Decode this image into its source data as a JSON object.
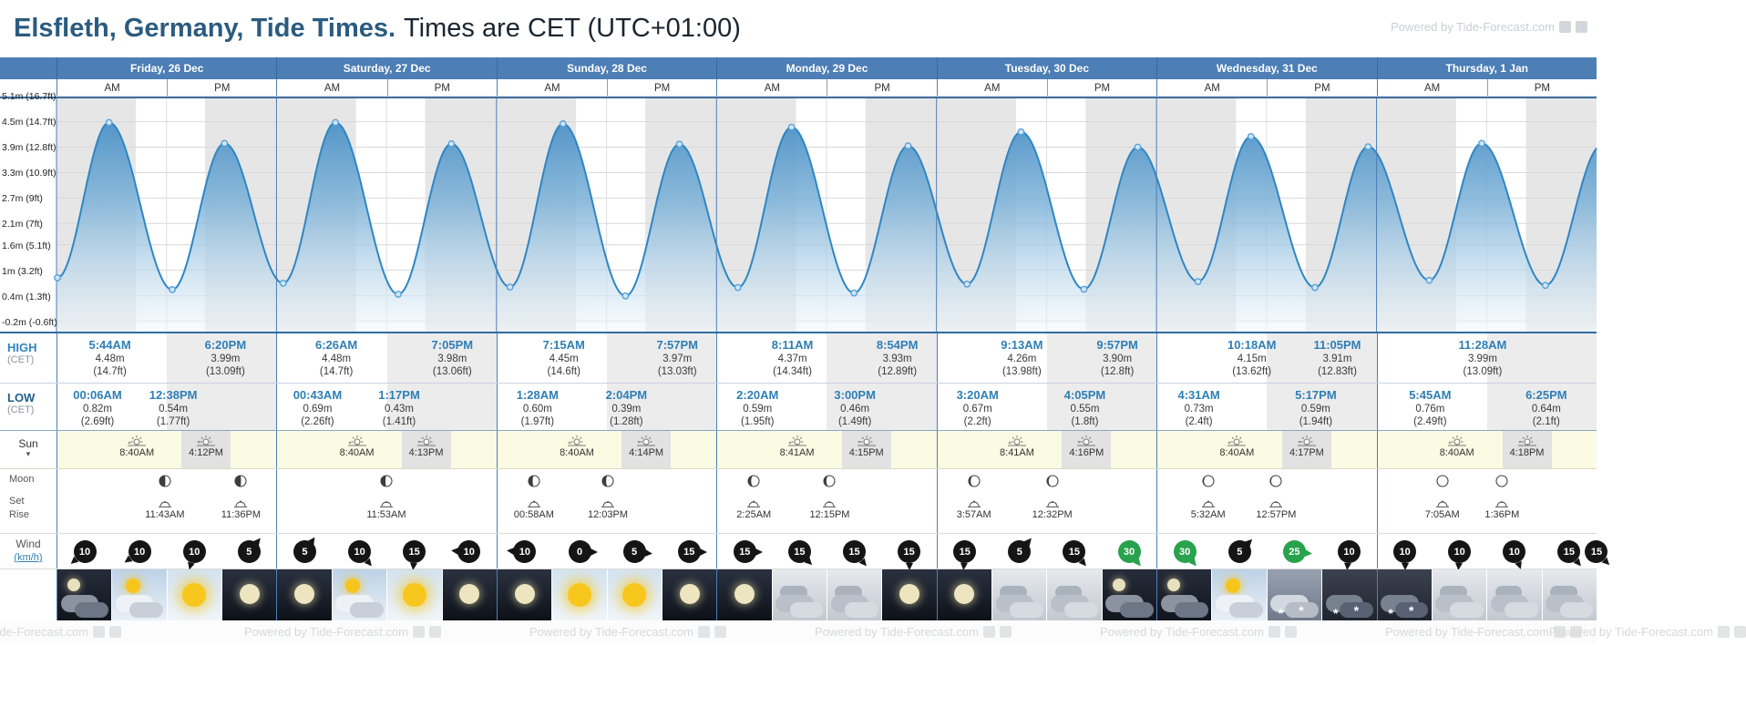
{
  "header": {
    "title_bold": "Elsfleth, Germany, Tide Times.",
    "title_rest": "Times are CET (UTC+01:00)",
    "watermark": "Powered by Tide-Forecast.com"
  },
  "ampm": {
    "am": "AM",
    "pm": "PM"
  },
  "row_labels": {
    "high": "HIGH",
    "high_sub": "(CET)",
    "low": "LOW",
    "low_sub": "(CET)",
    "sun": "Sun",
    "sun_caret": "▾",
    "moon": "Moon",
    "moon_set": "Set",
    "moon_rise": "Rise",
    "wind": "Wind",
    "wind_unit": "(km/h)"
  },
  "colors": {
    "accent_blue": "#4d7eb5",
    "tide_time_blue": "#2e7fb5",
    "curve_blue": "#2f86c3",
    "night_band_grey": "#e6e6e6",
    "wind_strong_green": "#28a24c",
    "sun_row_yellow": "#fbfbe3"
  },
  "days": [
    {
      "label": "Friday, 26 Dec",
      "high": [
        {
          "time": "5:44AM",
          "h": 5.73,
          "m": "4.48m",
          "ft": "(14.7ft)"
        },
        {
          "time": "6:20PM",
          "h": 18.33,
          "m": "3.99m",
          "ft": "(13.09ft)"
        }
      ],
      "low": [
        {
          "time": "00:06AM",
          "h": 0.1,
          "m": "0.82m",
          "ft": "(2.69ft)"
        },
        {
          "time": "12:38PM",
          "h": 12.63,
          "m": "0.54m",
          "ft": "(1.77ft)"
        }
      ],
      "sun": {
        "rise": "8:40AM",
        "rise_h": 8.67,
        "set": "4:12PM",
        "set_h": 16.2
      },
      "moon": [
        {
          "time": "11:43AM",
          "h": 11.72,
          "type": "rise",
          "phase": 0.48
        },
        {
          "time": "11:36PM",
          "h": 23.6,
          "type": "set",
          "phase": 0.48
        }
      ],
      "wind": [
        {
          "v": 10,
          "dir": 230
        },
        {
          "v": 10,
          "dir": 235
        },
        {
          "v": 10,
          "dir": 195
        },
        {
          "v": 5,
          "dir": 40
        }
      ],
      "weather": [
        "night-clouds",
        "day-sun-cloud",
        "sunny",
        "clear-night"
      ]
    },
    {
      "label": "Saturday, 27 Dec",
      "high": [
        {
          "time": "6:26AM",
          "h": 6.43,
          "m": "4.48m",
          "ft": "(14.7ft)"
        },
        {
          "time": "7:05PM",
          "h": 19.08,
          "m": "3.98m",
          "ft": "(13.06ft)"
        }
      ],
      "low": [
        {
          "time": "00:43AM",
          "h": 0.72,
          "m": "0.69m",
          "ft": "(2.26ft)"
        },
        {
          "time": "1:17PM",
          "h": 13.28,
          "m": "0.43m",
          "ft": "(1.41ft)"
        }
      ],
      "sun": {
        "rise": "8:40AM",
        "rise_h": 8.67,
        "set": "4:13PM",
        "set_h": 16.22
      },
      "moon": [
        {
          "time": "11:53AM",
          "h": 11.88,
          "type": "rise",
          "phase": 0.55
        }
      ],
      "wind": [
        {
          "v": 5,
          "dir": 35
        },
        {
          "v": 10,
          "dir": 140
        },
        {
          "v": 15,
          "dir": 185
        },
        {
          "v": 10,
          "dir": 275
        }
      ],
      "weather": [
        "clear-night",
        "day-sun-cloud",
        "sunny",
        "clear-night"
      ]
    },
    {
      "label": "Sunday, 28 Dec",
      "high": [
        {
          "time": "7:15AM",
          "h": 7.25,
          "m": "4.45m",
          "ft": "(14.6ft)"
        },
        {
          "time": "7:57PM",
          "h": 19.95,
          "m": "3.97m",
          "ft": "(13.03ft)"
        }
      ],
      "low": [
        {
          "time": "1:28AM",
          "h": 1.47,
          "m": "0.60m",
          "ft": "(1.97ft)"
        },
        {
          "time": "2:04PM",
          "h": 14.07,
          "m": "0.39m",
          "ft": "(1.28ft)"
        }
      ],
      "sun": {
        "rise": "8:40AM",
        "rise_h": 8.67,
        "set": "4:14PM",
        "set_h": 16.23
      },
      "moon": [
        {
          "time": "00:58AM",
          "h": 0.97,
          "type": "set",
          "phase": 0.58
        },
        {
          "time": "12:03PM",
          "h": 12.05,
          "type": "rise",
          "phase": 0.6
        }
      ],
      "wind": [
        {
          "v": 10,
          "dir": 275
        },
        {
          "v": 0,
          "dir": 90
        },
        {
          "v": 5,
          "dir": 95
        },
        {
          "v": 15,
          "dir": 90
        }
      ],
      "weather": [
        "clear-night",
        "sunny",
        "sunny",
        "clear-night"
      ]
    },
    {
      "label": "Monday, 29 Dec",
      "high": [
        {
          "time": "8:11AM",
          "h": 8.18,
          "m": "4.37m",
          "ft": "(14.34ft)"
        },
        {
          "time": "8:54PM",
          "h": 20.9,
          "m": "3.93m",
          "ft": "(12.89ft)"
        }
      ],
      "low": [
        {
          "time": "2:20AM",
          "h": 2.33,
          "m": "0.59m",
          "ft": "(1.95ft)"
        },
        {
          "time": "3:00PM",
          "h": 15.0,
          "m": "0.46m",
          "ft": "(1.49ft)"
        }
      ],
      "sun": {
        "rise": "8:41AM",
        "rise_h": 8.68,
        "set": "4:15PM",
        "set_h": 16.25
      },
      "moon": [
        {
          "time": "2:25AM",
          "h": 2.42,
          "type": "set",
          "phase": 0.65
        },
        {
          "time": "12:15PM",
          "h": 12.25,
          "type": "rise",
          "phase": 0.68
        }
      ],
      "wind": [
        {
          "v": 15,
          "dir": 90
        },
        {
          "v": 15,
          "dir": 135
        },
        {
          "v": 15,
          "dir": 140
        },
        {
          "v": 15,
          "dir": 180
        }
      ],
      "weather": [
        "clear-night",
        "cloudy",
        "cloudy",
        "clear-night"
      ]
    },
    {
      "label": "Tuesday, 30 Dec",
      "high": [
        {
          "time": "9:13AM",
          "h": 9.22,
          "m": "4.26m",
          "ft": "(13.98ft)"
        },
        {
          "time": "9:57PM",
          "h": 21.95,
          "m": "3.90m",
          "ft": "(12.8ft)"
        }
      ],
      "low": [
        {
          "time": "3:20AM",
          "h": 3.33,
          "m": "0.67m",
          "ft": "(2.2ft)"
        },
        {
          "time": "4:05PM",
          "h": 16.08,
          "m": "0.55m",
          "ft": "(1.8ft)"
        }
      ],
      "sun": {
        "rise": "8:41AM",
        "rise_h": 8.68,
        "set": "4:16PM",
        "set_h": 16.27
      },
      "moon": [
        {
          "time": "3:57AM",
          "h": 3.95,
          "type": "set",
          "phase": 0.72
        },
        {
          "time": "12:32PM",
          "h": 12.53,
          "type": "rise",
          "phase": 0.75
        }
      ],
      "wind": [
        {
          "v": 15,
          "dir": 185
        },
        {
          "v": 5,
          "dir": 40
        },
        {
          "v": 15,
          "dir": 140
        },
        {
          "v": 30,
          "dir": 140,
          "strong": true
        }
      ],
      "weather": [
        "clear-night",
        "cloudy",
        "cloudy",
        "night-clouds"
      ]
    },
    {
      "label": "Wednesday, 31 Dec",
      "high": [
        {
          "time": "10:18AM",
          "h": 10.3,
          "m": "4.15m",
          "ft": "(13.62ft)"
        },
        {
          "time": "11:05PM",
          "h": 23.08,
          "m": "3.91m",
          "ft": "(12.83ft)"
        }
      ],
      "low": [
        {
          "time": "4:31AM",
          "h": 4.52,
          "m": "0.73m",
          "ft": "(2.4ft)"
        },
        {
          "time": "5:17PM",
          "h": 17.28,
          "m": "0.59m",
          "ft": "(1.94ft)"
        }
      ],
      "sun": {
        "rise": "8:40AM",
        "rise_h": 8.67,
        "set": "4:17PM",
        "set_h": 16.28
      },
      "moon": [
        {
          "time": "5:32AM",
          "h": 5.53,
          "type": "set",
          "phase": 0.8
        },
        {
          "time": "12:57PM",
          "h": 12.95,
          "type": "rise",
          "phase": 0.82
        }
      ],
      "wind": [
        {
          "v": 30,
          "dir": 140,
          "strong": true
        },
        {
          "v": 5,
          "dir": 45
        },
        {
          "v": 25,
          "dir": 95,
          "strong": true
        },
        {
          "v": 10,
          "dir": 185
        }
      ],
      "weather": [
        "night-clouds",
        "day-sun-cloud",
        "snow-cloud",
        "snow-night"
      ]
    },
    {
      "label": "Thursday, 1 Jan",
      "high": [
        {
          "time": "11:28AM",
          "h": 11.47,
          "m": "3.99m",
          "ft": "(13.09ft)"
        }
      ],
      "low": [
        {
          "time": "5:45AM",
          "h": 5.75,
          "m": "0.76m",
          "ft": "(2.49ft)"
        },
        {
          "time": "6:25PM",
          "h": 18.42,
          "m": "0.64m",
          "ft": "(2.1ft)"
        }
      ],
      "sun": {
        "rise": "8:40AM",
        "rise_h": 8.67,
        "set": "4:18PM",
        "set_h": 16.3
      },
      "moon": [
        {
          "time": "7:05AM",
          "h": 7.08,
          "type": "set",
          "phase": 0.87
        },
        {
          "time": "1:36PM",
          "h": 13.6,
          "type": "rise",
          "phase": 0.9
        }
      ],
      "wind": [
        {
          "v": 10,
          "dir": 180
        },
        {
          "v": 10,
          "dir": 185
        },
        {
          "v": 10,
          "dir": 160
        },
        {
          "v": 15,
          "dir": 140
        }
      ],
      "weather": [
        "snow-night",
        "cloudy",
        "cloudy",
        "cloudy"
      ]
    }
  ],
  "edge": {
    "wind": {
      "v": 15,
      "dir": 135
    }
  },
  "footer": {
    "watermark": "Powered by Tide-Forecast.com",
    "watermark_clipped": "ed by Tide-Forecast.com"
  },
  "chart_data": {
    "type": "area",
    "title": "Tide height curve over 7 days",
    "x_axis": "hours from Friday 00:00 (CET)",
    "x_range_hours": [
      0,
      168
    ],
    "ylim_m": [
      -0.45,
      5.05
    ],
    "grid": true,
    "shading": "grey vertical bands = night (sunset to sunrise)",
    "y_ticks": [
      {
        "text": "5.1m (16.7ft)",
        "value": 5.1,
        "clipped": true
      },
      {
        "text": "4.5m (14.7ft)",
        "value": 4.5
      },
      {
        "text": "3.9m (12.8ft)",
        "value": 3.9
      },
      {
        "text": "3.3m (10.9ft)",
        "value": 3.3
      },
      {
        "text": "2.7m (9ft)",
        "value": 2.7
      },
      {
        "text": "2.1m (7ft)",
        "value": 2.1
      },
      {
        "text": "1.6m (5.1ft)",
        "value": 1.6
      },
      {
        "text": "1m (3.2ft)",
        "value": 1.0
      },
      {
        "text": "0.4m (1.3ft)",
        "value": 0.4
      },
      {
        "text": "-0.2m (-0.6ft)",
        "value": -0.2
      }
    ],
    "extremes": [
      {
        "t": 0.1,
        "v": 0.82,
        "kind": "low"
      },
      {
        "t": 5.73,
        "v": 4.48,
        "kind": "high"
      },
      {
        "t": 12.63,
        "v": 0.54,
        "kind": "low"
      },
      {
        "t": 18.33,
        "v": 3.99,
        "kind": "high"
      },
      {
        "t": 24.72,
        "v": 0.69,
        "kind": "low"
      },
      {
        "t": 30.43,
        "v": 4.48,
        "kind": "high"
      },
      {
        "t": 37.28,
        "v": 0.43,
        "kind": "low"
      },
      {
        "t": 43.08,
        "v": 3.98,
        "kind": "high"
      },
      {
        "t": 49.47,
        "v": 0.6,
        "kind": "low"
      },
      {
        "t": 55.25,
        "v": 4.45,
        "kind": "high"
      },
      {
        "t": 62.07,
        "v": 0.39,
        "kind": "low"
      },
      {
        "t": 67.95,
        "v": 3.97,
        "kind": "high"
      },
      {
        "t": 74.33,
        "v": 0.59,
        "kind": "low"
      },
      {
        "t": 80.18,
        "v": 4.37,
        "kind": "high"
      },
      {
        "t": 87.0,
        "v": 0.46,
        "kind": "low"
      },
      {
        "t": 92.9,
        "v": 3.93,
        "kind": "high"
      },
      {
        "t": 99.33,
        "v": 0.67,
        "kind": "low"
      },
      {
        "t": 105.22,
        "v": 4.26,
        "kind": "high"
      },
      {
        "t": 112.08,
        "v": 0.55,
        "kind": "low"
      },
      {
        "t": 117.95,
        "v": 3.9,
        "kind": "high"
      },
      {
        "t": 124.52,
        "v": 0.73,
        "kind": "low"
      },
      {
        "t": 130.3,
        "v": 4.15,
        "kind": "high"
      },
      {
        "t": 137.28,
        "v": 0.59,
        "kind": "low"
      },
      {
        "t": 143.08,
        "v": 3.91,
        "kind": "high"
      },
      {
        "t": 149.75,
        "v": 0.76,
        "kind": "low"
      },
      {
        "t": 155.47,
        "v": 3.99,
        "kind": "high"
      },
      {
        "t": 162.42,
        "v": 0.64,
        "kind": "low"
      }
    ]
  }
}
